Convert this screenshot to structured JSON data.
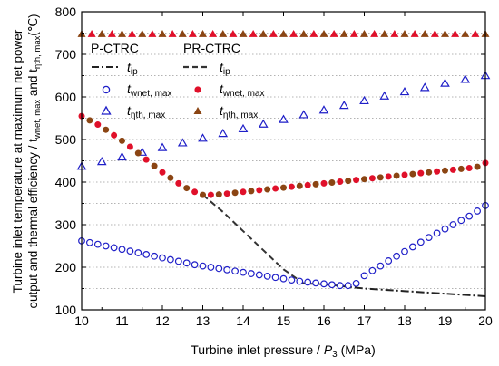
{
  "chart_data": {
    "type": "scatter",
    "xlabel_main": "Turbine inlet pressure / ",
    "xlabel_var": "P",
    "xlabel_sub": "3",
    "xlabel_unit": " (MPa)",
    "ylabel_line1": "Turbine inlet temperature at maximum net power",
    "ylabel_line2": "output and thermal efficiency / t",
    "ylabel_line2_sub": "wnet, max",
    "ylabel_line2_mid": " and t",
    "ylabel_line2_sub2": "ηth, max",
    "ylabel_line2_end": "(℃)",
    "xlim": [
      10,
      20
    ],
    "ylim": [
      100,
      800
    ],
    "xticks": [
      "10",
      "11",
      "12",
      "13",
      "14",
      "15",
      "16",
      "17",
      "18",
      "19",
      "20"
    ],
    "yticks": [
      "100",
      "200",
      "300",
      "400",
      "500",
      "600",
      "700",
      "800"
    ],
    "legend": {
      "group1_title": "P-CTRC",
      "group2_title": "PR-CTRC",
      "t_symbol": "t",
      "ip_sub": "ip",
      "wnet_sub": "wnet, max",
      "eta_sub": "ηth, max"
    },
    "colors": {
      "blue": "#1f1fc8",
      "red": "#e0102a",
      "brown": "#8b4513",
      "dashdot": "#222222",
      "dash": "#333333"
    },
    "series": [
      {
        "key": "p_ctrc_tip",
        "kind": "line-dashdot",
        "x": [
          16.0,
          16.5,
          17.0,
          17.5,
          18.0,
          18.5,
          19.0,
          19.5,
          20.0
        ],
        "y": [
          160,
          155,
          150,
          147,
          144,
          141,
          138,
          135,
          132
        ]
      },
      {
        "key": "pr_ctrc_tip",
        "kind": "line-dash",
        "x": [
          13.0,
          13.5,
          14.0,
          14.5,
          15.0,
          15.5,
          16.0
        ],
        "y": [
          370,
          330,
          285,
          240,
          195,
          162,
          160
        ]
      },
      {
        "key": "p_ctrc_twnet",
        "kind": "open-circle",
        "x": [
          10.0,
          10.2,
          10.4,
          10.6,
          10.8,
          11.0,
          11.2,
          11.4,
          11.6,
          11.8,
          12.0,
          12.2,
          12.4,
          12.6,
          12.8,
          13.0,
          13.2,
          13.4,
          13.6,
          13.8,
          14.0,
          14.2,
          14.4,
          14.6,
          14.8,
          15.0,
          15.2,
          15.4,
          15.6,
          15.8,
          16.0,
          16.2,
          16.4,
          16.6,
          16.8,
          17.0,
          17.2,
          17.4,
          17.6,
          17.8,
          18.0,
          18.2,
          18.4,
          18.6,
          18.8,
          19.0,
          19.2,
          19.4,
          19.6,
          19.8,
          20.0
        ],
        "y": [
          262,
          258,
          254,
          250,
          246,
          242,
          238,
          234,
          230,
          226,
          222,
          218,
          214,
          210,
          206,
          203,
          200,
          197,
          194,
          191,
          188,
          185,
          182,
          179,
          176,
          173,
          170,
          167,
          165,
          163,
          161,
          159,
          157,
          157,
          162,
          180,
          192,
          203,
          215,
          226,
          237,
          248,
          259,
          270,
          280,
          290,
          300,
          310,
          320,
          332,
          345
        ]
      },
      {
        "key": "p_ctrc_teta",
        "kind": "open-triangle",
        "x": [
          10.0,
          10.5,
          11.0,
          11.5,
          12.0,
          12.5,
          13.0,
          13.5,
          14.0,
          14.5,
          15.0,
          15.5,
          16.0,
          16.5,
          17.0,
          17.5,
          18.0,
          18.5,
          19.0,
          19.5,
          20.0
        ],
        "y": [
          437,
          448,
          459,
          470,
          481,
          492,
          503,
          514,
          525,
          536,
          547,
          558,
          569,
          580,
          591,
          602,
          612,
          622,
          632,
          641,
          650
        ]
      },
      {
        "key": "pr_ctrc_twnet",
        "kind": "filled-circle",
        "x": [
          10.0,
          10.2,
          10.4,
          10.6,
          10.8,
          11.0,
          11.2,
          11.4,
          11.6,
          11.8,
          12.0,
          12.2,
          12.4,
          12.6,
          12.8,
          13.0,
          13.2,
          13.4,
          13.6,
          13.8,
          14.0,
          14.2,
          14.4,
          14.6,
          14.8,
          15.0,
          15.2,
          15.4,
          15.6,
          15.8,
          16.0,
          16.2,
          16.4,
          16.6,
          16.8,
          17.0,
          17.2,
          17.4,
          17.6,
          17.8,
          18.0,
          18.2,
          18.4,
          18.6,
          18.8,
          19.0,
          19.2,
          19.4,
          19.6,
          19.8,
          20.0
        ],
        "y": [
          555,
          545,
          535,
          523,
          510,
          497,
          483,
          468,
          453,
          438,
          423,
          410,
          397,
          386,
          377,
          370,
          370,
          371,
          373,
          375,
          377,
          379,
          381,
          383,
          385,
          387,
          389,
          391,
          393,
          395,
          397,
          399,
          401,
          403,
          405,
          407,
          409,
          411,
          413,
          415,
          417,
          419,
          421,
          423,
          425,
          427,
          429,
          431,
          433,
          436,
          445
        ]
      },
      {
        "key": "pr_ctrc_teta",
        "kind": "filled-triangle",
        "x": [
          10.0,
          10.25,
          10.5,
          10.75,
          11.0,
          11.25,
          11.5,
          11.75,
          12.0,
          12.25,
          12.5,
          12.75,
          13.0,
          13.25,
          13.5,
          13.75,
          14.0,
          14.25,
          14.5,
          14.75,
          15.0,
          15.25,
          15.5,
          15.75,
          16.0,
          16.25,
          16.5,
          16.75,
          17.0,
          17.25,
          17.5,
          17.75,
          18.0,
          18.25,
          18.5,
          18.75,
          19.0,
          19.25,
          19.5,
          19.75,
          20.0
        ],
        "y": [
          748,
          748,
          748,
          748,
          748,
          748,
          748,
          748,
          748,
          748,
          748,
          748,
          748,
          748,
          748,
          748,
          748,
          748,
          748,
          748,
          748,
          748,
          748,
          748,
          748,
          748,
          748,
          748,
          748,
          748,
          748,
          748,
          748,
          748,
          748,
          748,
          748,
          748,
          748,
          748,
          748
        ]
      }
    ]
  }
}
